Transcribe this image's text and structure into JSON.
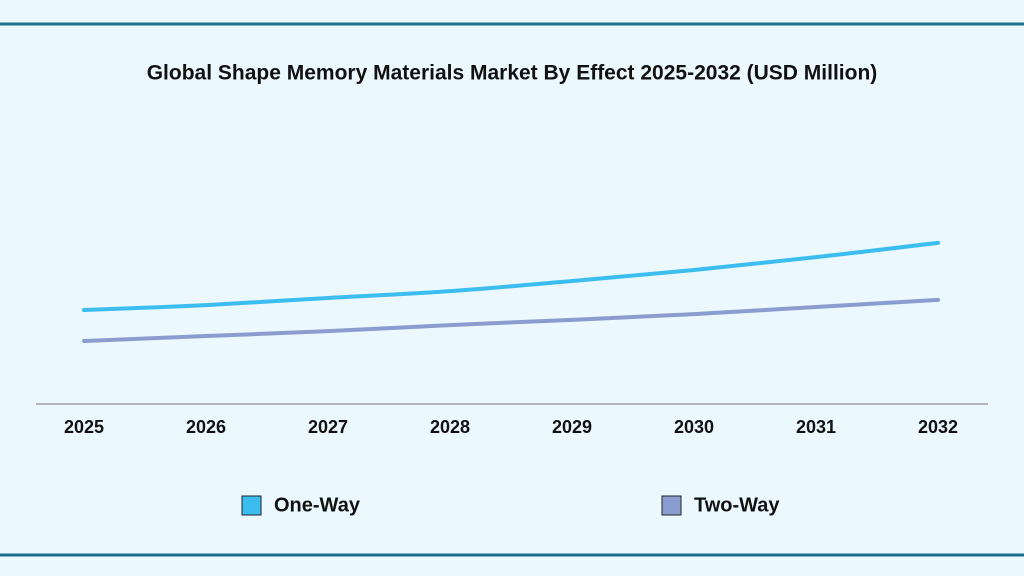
{
  "chart_data": {
    "type": "line",
    "title": "Global Shape Memory Materials Market By Effect 2025-2032 (USD Million)",
    "categories": [
      "2025",
      "2026",
      "2027",
      "2028",
      "2029",
      "2030",
      "2031",
      "2032"
    ],
    "series": [
      {
        "name": "One-Way",
        "color": "#3bbdf0",
        "values": [
          34.3,
          36.1,
          38.7,
          41.2,
          44.9,
          48.9,
          53.6,
          58.8
        ]
      },
      {
        "name": "Two-Way",
        "color": "#8b9dd0",
        "values": [
          23.0,
          24.8,
          26.6,
          28.8,
          30.7,
          32.8,
          35.4,
          38.0
        ]
      }
    ],
    "ylim": [
      0,
      100
    ]
  }
}
